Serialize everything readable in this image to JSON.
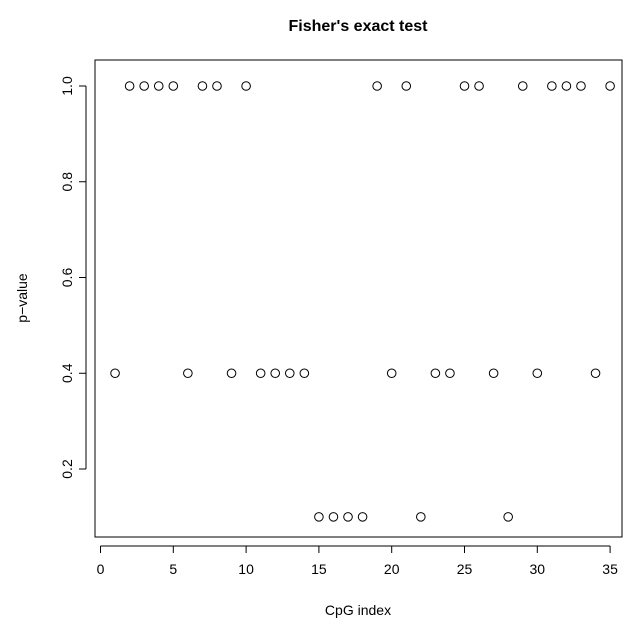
{
  "chart_data": {
    "type": "scatter",
    "title": "Fisher's exact test",
    "xlabel": "CpG index",
    "ylabel": "p−value",
    "xlim": [
      0,
      35.5
    ],
    "ylim": [
      0.07,
      1.03
    ],
    "x_ticks": [
      0,
      5,
      10,
      15,
      20,
      25,
      30,
      35
    ],
    "y_ticks": [
      0.2,
      0.4,
      0.6,
      0.8,
      1.0
    ],
    "y_tick_labels": [
      "0.2",
      "0.4",
      "0.6",
      "0.8",
      "1.0"
    ],
    "grid": false,
    "marker": "open-circle",
    "series": [
      {
        "x": [
          1,
          2,
          3,
          4,
          5,
          6,
          7,
          8,
          9,
          10,
          11,
          12,
          13,
          14,
          15,
          16,
          17,
          18,
          19,
          20,
          21,
          22,
          23,
          24,
          25,
          26,
          27,
          28,
          29,
          30,
          31,
          32,
          33,
          34,
          35
        ],
        "y": [
          0.4,
          1.0,
          1.0,
          1.0,
          1.0,
          0.4,
          1.0,
          1.0,
          0.4,
          1.0,
          0.4,
          0.4,
          0.4,
          0.4,
          0.1,
          0.1,
          0.1,
          0.1,
          1.0,
          0.4,
          1.0,
          0.1,
          0.4,
          0.4,
          1.0,
          1.0,
          0.4,
          0.1,
          1.0,
          0.4,
          1.0,
          1.0,
          1.0,
          0.4,
          1.0
        ]
      }
    ]
  }
}
